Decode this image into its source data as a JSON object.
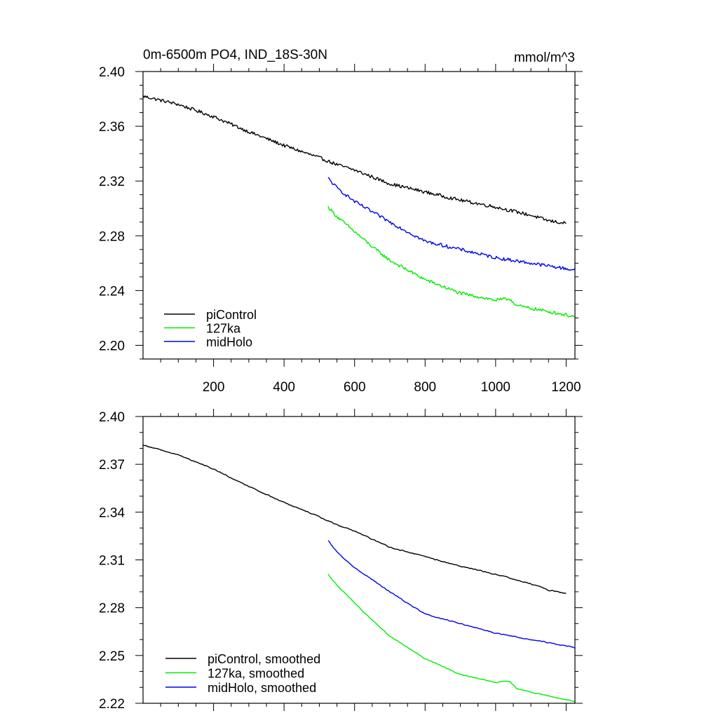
{
  "chart_data": [
    {
      "type": "line",
      "title": "0m-6500m PO4, IND_18S-30N",
      "units": "mmol/m^3",
      "xlim": [
        0,
        1225
      ],
      "ylim": [
        2.19,
        2.4
      ],
      "xticks": [
        200,
        400,
        600,
        800,
        1000,
        1200
      ],
      "xtick_labels": [
        "200",
        "400",
        "600",
        "800",
        "1000",
        "1200"
      ],
      "yticks": [
        2.2,
        2.24,
        2.28,
        2.32,
        2.36,
        2.4
      ],
      "ytick_labels": [
        "2.20",
        "2.24",
        "2.28",
        "2.32",
        "2.36",
        "2.40"
      ],
      "legend_location": "lower-left",
      "series": [
        {
          "name": "piControl",
          "color": "#000000",
          "x": [
            0,
            100,
            200,
            300,
            400,
            500,
            550,
            600,
            700,
            800,
            900,
            1000,
            1100,
            1150,
            1200
          ],
          "values": [
            2.382,
            2.376,
            2.367,
            2.356,
            2.346,
            2.337,
            2.332,
            2.328,
            2.318,
            2.312,
            2.306,
            2.301,
            2.295,
            2.291,
            2.289
          ],
          "noise": 0.0012
        },
        {
          "name": "127ka",
          "color": "#00ee00",
          "x": [
            525,
            550,
            600,
            650,
            700,
            800,
            900,
            1000,
            1040,
            1060,
            1100,
            1225
          ],
          "values": [
            2.301,
            2.294,
            2.283,
            2.272,
            2.262,
            2.248,
            2.238,
            2.233,
            2.234,
            2.229,
            2.227,
            2.221
          ],
          "noise": 0.0012
        },
        {
          "name": "midHolo",
          "color": "#0000ee",
          "x": [
            525,
            550,
            600,
            700,
            800,
            900,
            1000,
            1100,
            1225
          ],
          "values": [
            2.322,
            2.315,
            2.305,
            2.29,
            2.276,
            2.27,
            2.264,
            2.26,
            2.255
          ],
          "noise": 0.0012
        }
      ]
    },
    {
      "type": "line",
      "title": "",
      "xlim": [
        0,
        1225
      ],
      "ylim": [
        2.22,
        2.4
      ],
      "xticks": [
        200,
        400,
        600,
        800,
        1000,
        1200
      ],
      "xtick_labels": [],
      "yticks": [
        2.22,
        2.25,
        2.28,
        2.31,
        2.34,
        2.37,
        2.4
      ],
      "ytick_labels": [
        "2.22",
        "2.25",
        "2.28",
        "2.31",
        "2.34",
        "2.37",
        "2.40"
      ],
      "legend_location": "lower-left",
      "series": [
        {
          "name": "piControl, smoothed",
          "color": "#000000",
          "x": [
            0,
            100,
            200,
            300,
            400,
            500,
            550,
            600,
            700,
            800,
            900,
            1000,
            1100,
            1150,
            1200
          ],
          "values": [
            2.382,
            2.376,
            2.367,
            2.356,
            2.346,
            2.337,
            2.332,
            2.328,
            2.318,
            2.312,
            2.306,
            2.301,
            2.295,
            2.291,
            2.289
          ],
          "noise": 0.0005
        },
        {
          "name": "127ka, smoothed",
          "color": "#00ee00",
          "x": [
            525,
            550,
            600,
            650,
            700,
            800,
            900,
            1000,
            1040,
            1060,
            1100,
            1225
          ],
          "values": [
            2.301,
            2.294,
            2.283,
            2.272,
            2.262,
            2.248,
            2.238,
            2.233,
            2.234,
            2.229,
            2.227,
            2.221
          ],
          "noise": 0.0005
        },
        {
          "name": "midHolo, smoothed",
          "color": "#0000ee",
          "x": [
            525,
            550,
            600,
            700,
            800,
            900,
            1000,
            1100,
            1225
          ],
          "values": [
            2.322,
            2.315,
            2.305,
            2.29,
            2.276,
            2.27,
            2.264,
            2.26,
            2.255
          ],
          "noise": 0.0005
        }
      ]
    }
  ]
}
